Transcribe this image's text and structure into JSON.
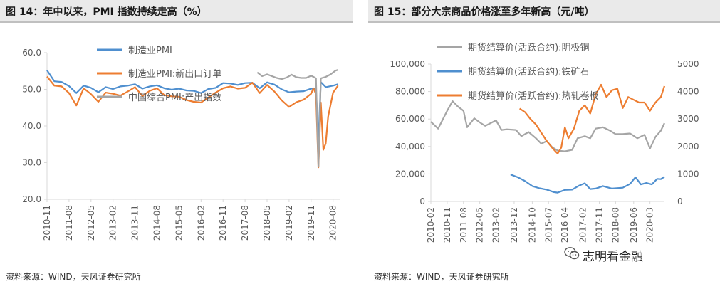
{
  "watermark": {
    "text": "志明看金融",
    "icon": "wechat-icon"
  },
  "chart_data": [
    {
      "type": "line",
      "title": "图 14：年中以来，PMI 指数持续走高（%）",
      "source": "资料来源：WIND，天风证券研究所",
      "ylim": [
        20,
        60
      ],
      "yticks": [
        "60.0",
        "50.0",
        "40.0",
        "30.0",
        "20.0"
      ],
      "ytick_values": [
        60,
        50,
        40,
        30,
        20
      ],
      "xlim": [
        "2010-11",
        "2020-11"
      ],
      "xticks": [
        "2010-11",
        "2011-08",
        "2012-05",
        "2013-02",
        "2013-11",
        "2014-08",
        "2015-05",
        "2016-02",
        "2016-11",
        "2017-08",
        "2018-05",
        "2019-02",
        "2019-11",
        "2020-08"
      ],
      "legend_position": "top-center",
      "series": [
        {
          "name": "制造业PMI",
          "color": "#4f8fcf",
          "points": [
            [
              "2010-11",
              55.2
            ],
            [
              "2011-02",
              52.2
            ],
            [
              "2011-05",
              52.0
            ],
            [
              "2011-08",
              50.9
            ],
            [
              "2011-11",
              49.0
            ],
            [
              "2012-02",
              51.0
            ],
            [
              "2012-05",
              50.4
            ],
            [
              "2012-08",
              49.2
            ],
            [
              "2012-11",
              50.6
            ],
            [
              "2013-02",
              50.1
            ],
            [
              "2013-05",
              50.8
            ],
            [
              "2013-08",
              51.0
            ],
            [
              "2013-11",
              51.4
            ],
            [
              "2014-02",
              50.2
            ],
            [
              "2014-05",
              50.8
            ],
            [
              "2014-08",
              51.1
            ],
            [
              "2014-11",
              50.3
            ],
            [
              "2015-02",
              49.9
            ],
            [
              "2015-05",
              50.2
            ],
            [
              "2015-08",
              49.7
            ],
            [
              "2015-11",
              49.6
            ],
            [
              "2016-02",
              49.0
            ],
            [
              "2016-05",
              50.1
            ],
            [
              "2016-08",
              50.4
            ],
            [
              "2016-11",
              51.7
            ],
            [
              "2017-02",
              51.6
            ],
            [
              "2017-05",
              51.2
            ],
            [
              "2017-08",
              51.7
            ],
            [
              "2017-11",
              51.8
            ],
            [
              "2018-02",
              50.3
            ],
            [
              "2018-05",
              51.9
            ],
            [
              "2018-08",
              51.3
            ],
            [
              "2018-11",
              50.0
            ],
            [
              "2019-02",
              49.2
            ],
            [
              "2019-05",
              49.4
            ],
            [
              "2019-08",
              49.5
            ],
            [
              "2019-11",
              50.2
            ],
            [
              "2019-12",
              50.2
            ],
            [
              "2020-01",
              50.0
            ],
            [
              "2020-02",
              35.7
            ],
            [
              "2020-03",
              52.0
            ],
            [
              "2020-05",
              50.6
            ],
            [
              "2020-08",
              51.0
            ],
            [
              "2020-10",
              51.4
            ]
          ]
        },
        {
          "name": "制造业PMI:新出口订单",
          "color": "#ed7d31",
          "points": [
            [
              "2010-11",
              53.5
            ],
            [
              "2011-02",
              51.0
            ],
            [
              "2011-05",
              50.8
            ],
            [
              "2011-08",
              49.0
            ],
            [
              "2011-11",
              45.6
            ],
            [
              "2012-02",
              50.3
            ],
            [
              "2012-05",
              48.7
            ],
            [
              "2012-08",
              46.6
            ],
            [
              "2012-11",
              49.1
            ],
            [
              "2013-02",
              48.8
            ],
            [
              "2013-05",
              48.3
            ],
            [
              "2013-08",
              49.4
            ],
            [
              "2013-11",
              50.6
            ],
            [
              "2014-02",
              48.2
            ],
            [
              "2014-05",
              49.6
            ],
            [
              "2014-08",
              50.3
            ],
            [
              "2014-11",
              48.4
            ],
            [
              "2015-02",
              48.1
            ],
            [
              "2015-05",
              48.0
            ],
            [
              "2015-08",
              47.1
            ],
            [
              "2015-11",
              46.6
            ],
            [
              "2016-02",
              46.4
            ],
            [
              "2016-05",
              47.8
            ],
            [
              "2016-08",
              49.1
            ],
            [
              "2016-11",
              50.3
            ],
            [
              "2017-02",
              50.8
            ],
            [
              "2017-05",
              50.2
            ],
            [
              "2017-08",
              50.4
            ],
            [
              "2017-11",
              51.8
            ],
            [
              "2018-02",
              49.0
            ],
            [
              "2018-05",
              51.2
            ],
            [
              "2018-08",
              49.4
            ],
            [
              "2018-11",
              47.0
            ],
            [
              "2019-02",
              45.2
            ],
            [
              "2019-05",
              46.5
            ],
            [
              "2019-08",
              47.2
            ],
            [
              "2019-11",
              48.8
            ],
            [
              "2019-12",
              50.3
            ],
            [
              "2020-01",
              48.7
            ],
            [
              "2020-02",
              28.7
            ],
            [
              "2020-03",
              46.4
            ],
            [
              "2020-04",
              33.5
            ],
            [
              "2020-05",
              35.3
            ],
            [
              "2020-06",
              42.6
            ],
            [
              "2020-08",
              49.1
            ],
            [
              "2020-10",
              51.0
            ]
          ]
        },
        {
          "name": "中国综合PMI:产出指数",
          "color": "#a5a5a5",
          "points": [
            [
              "2018-01",
              54.6
            ],
            [
              "2018-03",
              53.6
            ],
            [
              "2018-05",
              54.1
            ],
            [
              "2018-07",
              53.6
            ],
            [
              "2018-09",
              53.1
            ],
            [
              "2018-11",
              52.8
            ],
            [
              "2019-01",
              53.2
            ],
            [
              "2019-03",
              54.0
            ],
            [
              "2019-05",
              53.3
            ],
            [
              "2019-07",
              53.1
            ],
            [
              "2019-09",
              53.1
            ],
            [
              "2019-11",
              53.7
            ],
            [
              "2019-12",
              53.4
            ],
            [
              "2020-01",
              53.0
            ],
            [
              "2020-02",
              28.9
            ],
            [
              "2020-03",
              53.0
            ],
            [
              "2020-05",
              53.4
            ],
            [
              "2020-07",
              54.1
            ],
            [
              "2020-09",
              55.1
            ],
            [
              "2020-10",
              55.3
            ]
          ]
        }
      ]
    },
    {
      "type": "line",
      "title": "图 15：部分大宗商品价格涨至多年新高（元/吨）",
      "source": "资料来源：WIND，天风证券研究所",
      "ylim": [
        0,
        100000
      ],
      "yticks": [
        "100,000",
        "80,000",
        "60,000",
        "40,000",
        "20,000",
        "0"
      ],
      "ytick_values": [
        100000,
        80000,
        60000,
        40000,
        20000,
        0
      ],
      "y2lim": [
        0,
        5000
      ],
      "y2ticks": [
        "5000",
        "4000",
        "3000",
        "2000",
        "1000",
        "0"
      ],
      "y2tick_values": [
        5000,
        4000,
        3000,
        2000,
        1000,
        0
      ],
      "xlim": [
        "2010-02",
        "2020-11"
      ],
      "xticks": [
        "2010-02",
        "2010-11",
        "2011-08",
        "2012-05",
        "2013-02",
        "2013-12",
        "2014-10",
        "2015-07",
        "2016-04",
        "2017-02",
        "2017-11",
        "2018-08",
        "2019-06",
        "2020-03"
      ],
      "legend_position": "top-center",
      "series": [
        {
          "name": "期货结算价(活跃合约):阴极铜",
          "color": "#a5a5a5",
          "axis": "left",
          "points": [
            [
              "2010-02",
              58000
            ],
            [
              "2010-06",
              53000
            ],
            [
              "2010-11",
              66000
            ],
            [
              "2011-02",
              73000
            ],
            [
              "2011-05",
              69000
            ],
            [
              "2011-08",
              66000
            ],
            [
              "2011-10",
              54000
            ],
            [
              "2012-02",
              60500
            ],
            [
              "2012-05",
              57500
            ],
            [
              "2012-08",
              55000
            ],
            [
              "2013-02",
              59000
            ],
            [
              "2013-05",
              52000
            ],
            [
              "2013-08",
              52500
            ],
            [
              "2014-01",
              52000
            ],
            [
              "2014-04",
              47500
            ],
            [
              "2014-08",
              50500
            ],
            [
              "2014-12",
              46000
            ],
            [
              "2015-03",
              42000
            ],
            [
              "2015-06",
              44000
            ],
            [
              "2015-09",
              39500
            ],
            [
              "2015-12",
              37000
            ],
            [
              "2016-04",
              36500
            ],
            [
              "2016-08",
              37500
            ],
            [
              "2016-11",
              46000
            ],
            [
              "2017-03",
              47500
            ],
            [
              "2017-06",
              46000
            ],
            [
              "2017-09",
              53000
            ],
            [
              "2018-01",
              54000
            ],
            [
              "2018-05",
              51500
            ],
            [
              "2018-08",
              49000
            ],
            [
              "2018-12",
              49000
            ],
            [
              "2019-04",
              49500
            ],
            [
              "2019-08",
              46000
            ],
            [
              "2019-12",
              48500
            ],
            [
              "2020-03",
              38500
            ],
            [
              "2020-06",
              47000
            ],
            [
              "2020-09",
              51500
            ],
            [
              "2020-11",
              57000
            ]
          ]
        },
        {
          "name": "期货结算价(活跃合约):铁矿石",
          "color": "#4f8fcf",
          "axis": "right",
          "points": [
            [
              "2013-10",
              980
            ],
            [
              "2014-02",
              880
            ],
            [
              "2014-06",
              740
            ],
            [
              "2014-10",
              560
            ],
            [
              "2015-02",
              480
            ],
            [
              "2015-06",
              430
            ],
            [
              "2015-10",
              340
            ],
            [
              "2015-12",
              320
            ],
            [
              "2016-04",
              420
            ],
            [
              "2016-08",
              430
            ],
            [
              "2016-12",
              580
            ],
            [
              "2017-03",
              660
            ],
            [
              "2017-06",
              450
            ],
            [
              "2017-09",
              470
            ],
            [
              "2018-01",
              560
            ],
            [
              "2018-06",
              470
            ],
            [
              "2018-12",
              500
            ],
            [
              "2019-04",
              640
            ],
            [
              "2019-07",
              880
            ],
            [
              "2019-10",
              620
            ],
            [
              "2020-01",
              670
            ],
            [
              "2020-04",
              620
            ],
            [
              "2020-07",
              820
            ],
            [
              "2020-09",
              810
            ],
            [
              "2020-11",
              900
            ]
          ]
        },
        {
          "name": "期货结算价(活跃合约):热轧卷板",
          "color": "#ed7d31",
          "axis": "right",
          "points": [
            [
              "2014-03",
              3380
            ],
            [
              "2014-06",
              3250
            ],
            [
              "2014-09",
              3000
            ],
            [
              "2014-12",
              2800
            ],
            [
              "2015-03",
              2500
            ],
            [
              "2015-06",
              2200
            ],
            [
              "2015-09",
              1950
            ],
            [
              "2015-12",
              1740
            ],
            [
              "2016-02",
              1960
            ],
            [
              "2016-04",
              2700
            ],
            [
              "2016-06",
              2300
            ],
            [
              "2016-09",
              2650
            ],
            [
              "2016-12",
              3300
            ],
            [
              "2017-03",
              3500
            ],
            [
              "2017-06",
              3200
            ],
            [
              "2017-09",
              3900
            ],
            [
              "2017-12",
              4250
            ],
            [
              "2018-03",
              3800
            ],
            [
              "2018-06",
              4050
            ],
            [
              "2018-09",
              4100
            ],
            [
              "2018-12",
              3400
            ],
            [
              "2019-03",
              3800
            ],
            [
              "2019-06",
              3700
            ],
            [
              "2019-09",
              3600
            ],
            [
              "2019-12",
              3600
            ],
            [
              "2020-03",
              3300
            ],
            [
              "2020-06",
              3600
            ],
            [
              "2020-09",
              3800
            ],
            [
              "2020-11",
              4200
            ]
          ]
        }
      ]
    }
  ]
}
